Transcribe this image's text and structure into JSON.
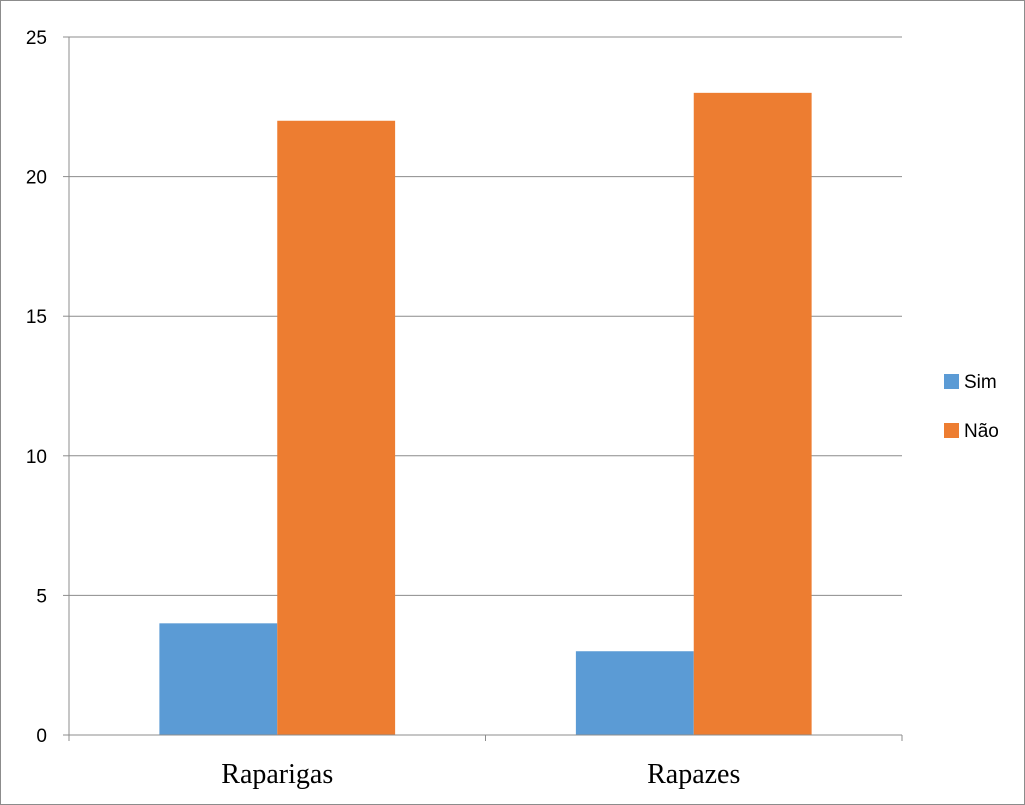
{
  "chart_data": {
    "type": "bar",
    "categories": [
      "Raparigas",
      "Rapazes"
    ],
    "series": [
      {
        "name": "Sim",
        "values": [
          4,
          3
        ],
        "color": "#5b9bd5"
      },
      {
        "name": "Não",
        "values": [
          22,
          23
        ],
        "color": "#ed7d31"
      }
    ],
    "ylim": [
      0,
      25
    ],
    "yticks": [
      0,
      5,
      10,
      15,
      20,
      25
    ],
    "grid": true,
    "legend": "right",
    "title": "",
    "xlabel": "",
    "ylabel": ""
  }
}
